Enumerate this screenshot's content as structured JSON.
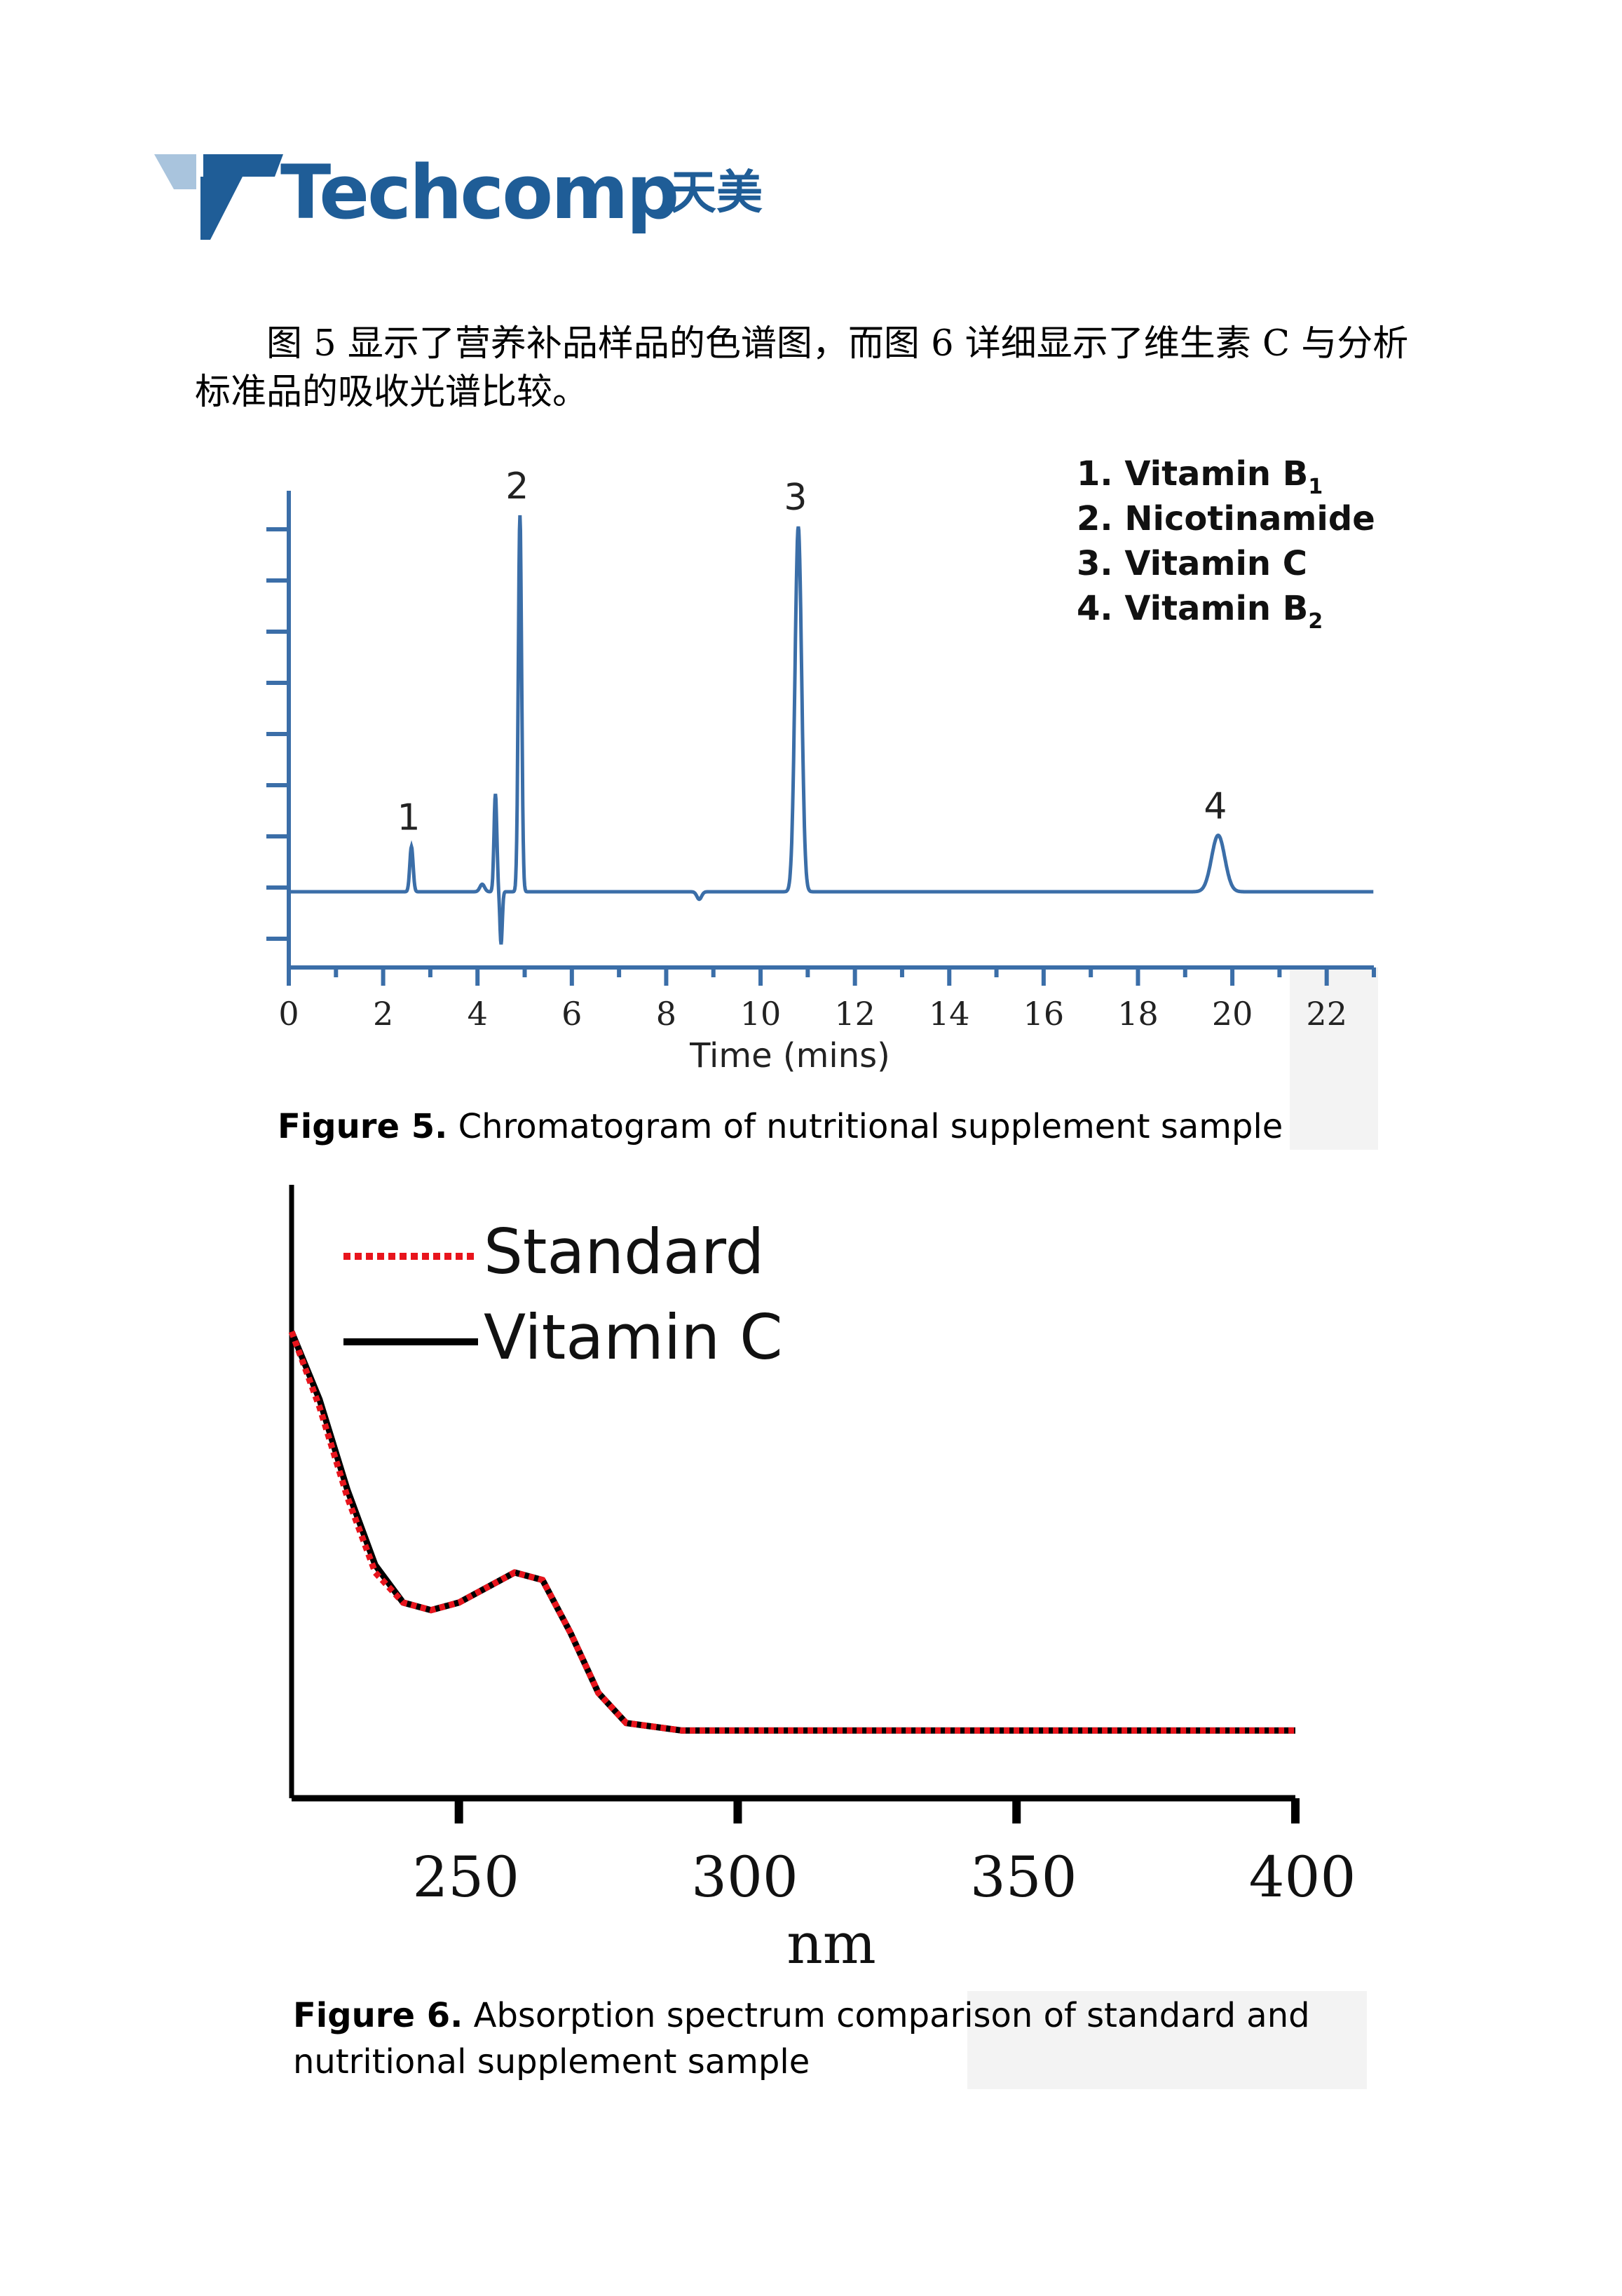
{
  "header": {
    "brand_name": "Techcomp",
    "brand_chinese": "天美",
    "logo_icon": "techcomp-t-logo-icon",
    "brand_color": "#1f5d97"
  },
  "body_text": "图 5 显示了营养补品样品的色谱图，而图 6 详细显示了维生素 C 与分析标准品的吸收光谱比较。",
  "figure5": {
    "caption_label": "Figure 5.",
    "caption_text": " Chromatogram of nutritional supplement sample",
    "chart_data": {
      "type": "line",
      "xlabel": "Time (mins)",
      "ylabel": "",
      "xlim": [
        0,
        23
      ],
      "x_ticks": [
        "0",
        "2",
        "4",
        "6",
        "8",
        "10",
        "12",
        "14",
        "16",
        "18",
        "20",
        "22"
      ],
      "line_color": "#3b6ea8",
      "peaks": [
        {
          "label": "1",
          "time": 2.6,
          "relative_height": 0.12
        },
        {
          "label": "2",
          "time": 4.9,
          "relative_height": 1.0
        },
        {
          "label": "3",
          "time": 10.8,
          "relative_height": 0.97
        },
        {
          "label": "4",
          "time": 19.7,
          "relative_height": 0.15
        }
      ],
      "legend": [
        {
          "number": "1.",
          "name": "Vitamin B",
          "subscript": "1"
        },
        {
          "number": "2.",
          "name": "Nicotinamide",
          "subscript": ""
        },
        {
          "number": "3.",
          "name": "Vitamin C",
          "subscript": ""
        },
        {
          "number": "4.",
          "name": "Vitamin B",
          "subscript": "2"
        }
      ],
      "legend_position": "top-right"
    }
  },
  "figure6": {
    "caption_label": "Figure 6.",
    "caption_text": " Absorption spectrum comparison of standard and nutritional supplement sample",
    "chart_data": {
      "type": "line",
      "xlabel": "nm",
      "xlim": [
        220,
        400
      ],
      "x_ticks": [
        "250",
        "300",
        "350",
        "400"
      ],
      "legend_position": "top-left",
      "series": [
        {
          "name": "Standard",
          "color": "#e8141c",
          "style": "dotted",
          "x": [
            220,
            225,
            230,
            235,
            240,
            245,
            250,
            255,
            260,
            265,
            270,
            275,
            280,
            290,
            300,
            320,
            350,
            400
          ],
          "y": [
            0.62,
            0.52,
            0.4,
            0.3,
            0.26,
            0.25,
            0.26,
            0.28,
            0.3,
            0.29,
            0.22,
            0.14,
            0.1,
            0.09,
            0.09,
            0.09,
            0.09,
            0.09
          ]
        },
        {
          "name": "Vitamin C",
          "color": "#000000",
          "style": "solid",
          "x": [
            220,
            225,
            230,
            235,
            240,
            245,
            250,
            255,
            260,
            265,
            270,
            275,
            280,
            290,
            300,
            320,
            350,
            400
          ],
          "y": [
            0.62,
            0.53,
            0.41,
            0.31,
            0.26,
            0.25,
            0.26,
            0.28,
            0.3,
            0.29,
            0.22,
            0.14,
            0.1,
            0.09,
            0.09,
            0.09,
            0.09,
            0.09
          ]
        }
      ]
    }
  }
}
